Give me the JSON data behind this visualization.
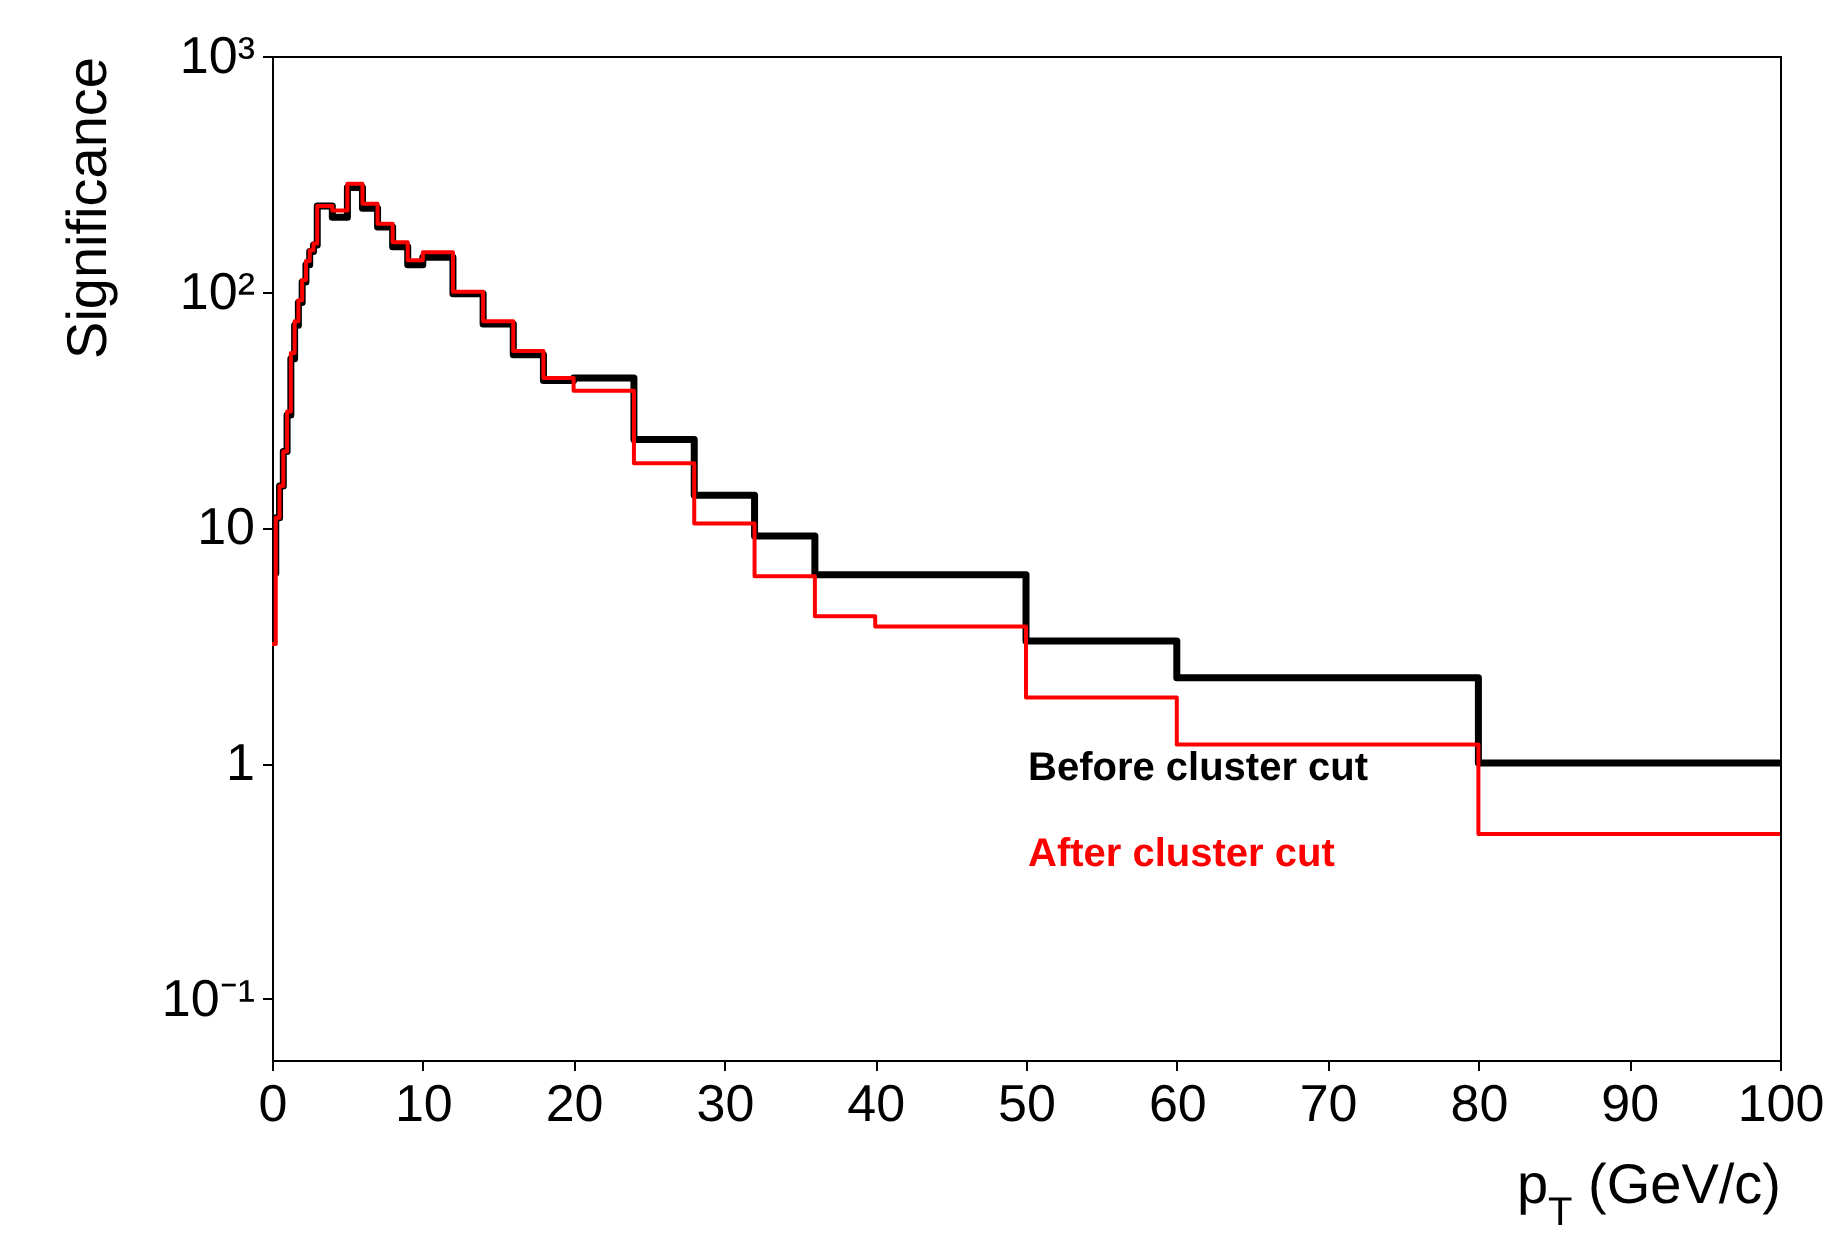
{
  "chart_data": {
    "type": "step",
    "xlabel": "p$_{T}$ (GeV/c)",
    "ylabel": "Significance",
    "x": [
      0,
      0.25,
      0.5,
      0.75,
      1,
      1.25,
      1.5,
      1.75,
      2,
      2.25,
      2.5,
      2.75,
      3,
      4,
      5,
      6,
      7,
      8,
      9,
      10,
      12,
      14,
      16,
      18,
      20,
      24,
      28,
      32,
      36,
      40,
      50,
      60,
      80,
      100
    ],
    "series": [
      {
        "name": "Before cluster cut",
        "color": "#000000",
        "values": [
          6.4,
          11,
          15,
          21,
          30,
          52,
          72,
          90,
          110,
          130,
          148,
          158,
          231,
          207,
          277,
          226,
          188,
          155,
          130,
          140,
          98,
          73,
          54,
          42,
          43,
          23.6,
          13.7,
          9.2,
          6.3,
          6.3,
          3.3,
          2.3,
          1.0,
          1.0
        ]
      },
      {
        "name": "After cluster cut",
        "color": "#ff0000",
        "values": [
          3.2,
          11,
          15,
          21,
          31,
          55,
          75,
          92,
          112,
          135,
          150,
          160,
          231,
          221,
          287,
          236,
          194,
          162,
          136,
          147,
          100,
          75,
          56,
          43,
          38,
          18.7,
          10.4,
          6.2,
          4.2,
          3.8,
          1.9,
          1.2,
          0.5,
          0.5
        ]
      }
    ],
    "log": "y",
    "xlim": [
      0,
      100
    ],
    "xticks": [
      0,
      10,
      20,
      30,
      40,
      50,
      60,
      70,
      80,
      90,
      100
    ],
    "ylim": [
      0.055,
      1000
    ],
    "yticks": [
      {
        "value": 0.1,
        "label": "10⁻¹"
      },
      1,
      10,
      {
        "value": 100,
        "label": "10²"
      },
      {
        "value": 1000,
        "label": "10³"
      }
    ],
    "grid": false,
    "legend": "right"
  }
}
